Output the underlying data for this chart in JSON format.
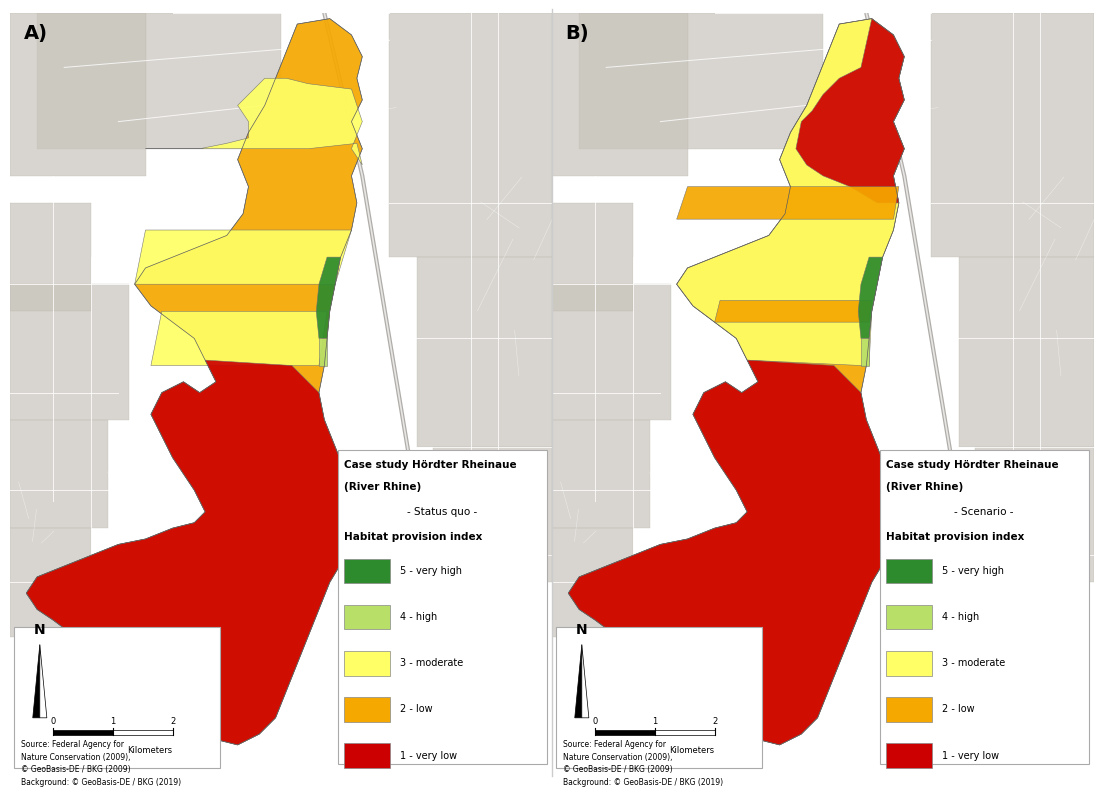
{
  "panel_A_label": "A)",
  "panel_B_label": "B)",
  "title_line1": "Case study Hördter Rheinaue",
  "title_line2": "(River Rhine)",
  "subtitle_A": "- Status quo -",
  "subtitle_B": "- Scenario -",
  "legend_title": "Habitat provision index",
  "legend_items": [
    {
      "label": "5 - very high",
      "color": "#2d8b2d"
    },
    {
      "label": "4 - high",
      "color": "#b8e068"
    },
    {
      "label": "3 - moderate",
      "color": "#ffff66"
    },
    {
      "label": "2 - low",
      "color": "#f5a800"
    },
    {
      "label": "1 - very low",
      "color": "#cc0000"
    }
  ],
  "source_text": "Source: Federal Agency for\nNature Conservation (2009),\n© GeoBasis-DE / BKG (2009)\nBackground: © GeoBasis-DE / BKG (2019)",
  "bg_color": "#e0ddd8",
  "map_bg_color": "#dedad4",
  "legend_bg_color": "#ffffff"
}
